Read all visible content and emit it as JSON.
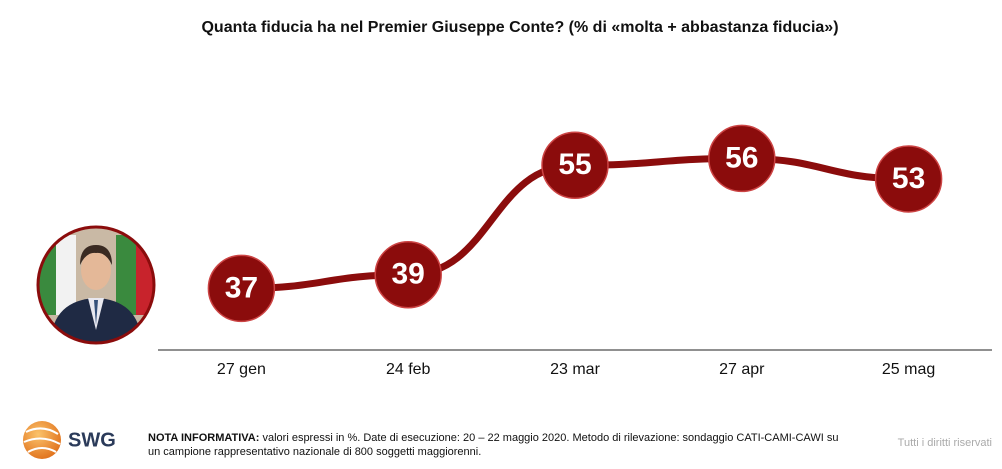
{
  "chart_data": {
    "type": "line",
    "title": "Quanta fiducia ha nel Premier Giuseppe Conte? (% di «molta + abbastanza fiducia»)",
    "categories": [
      "27 gen",
      "24 feb",
      "23 mar",
      "27 apr",
      "25 mag"
    ],
    "values": [
      37,
      39,
      55,
      56,
      53
    ],
    "color": "#8b0c0c",
    "ylim": [
      28,
      66
    ]
  },
  "footer": {
    "logo": "SWG",
    "note_label": "NOTA INFORMATIVA:",
    "note_text": "valori espressi in %. Date di esecuzione: 20 – 22 maggio 2020. Metodo di rilevazione: sondaggio CATI-CAMI-CAWI su un campione rappresentativo nazionale di 800 soggetti maggiorenni.",
    "rights": "Tutti i diritti riservati"
  }
}
